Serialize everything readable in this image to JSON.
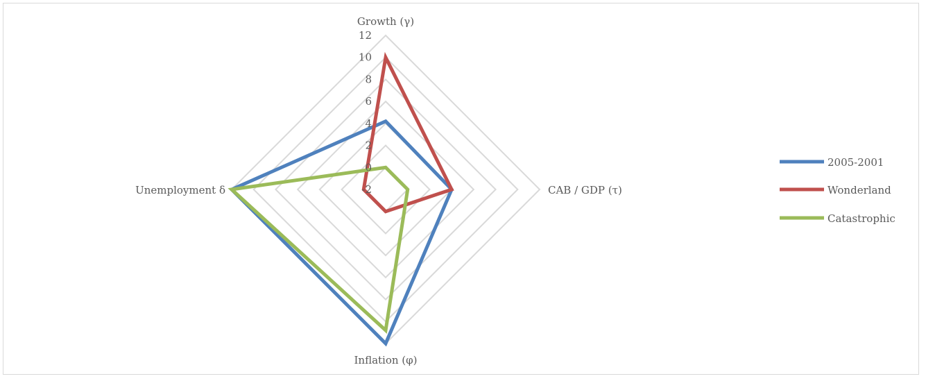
{
  "chart_data": {
    "type": "radar",
    "axes": [
      "Growth (γ)",
      "CAB / GDP (τ)",
      "Inflation (φ)",
      "Unemployment δ"
    ],
    "range": [
      -2,
      12
    ],
    "ticks": [
      "-2",
      "0",
      "2",
      "4",
      "6",
      "8",
      "10",
      "12"
    ],
    "tick_values": [
      -2,
      0,
      2,
      4,
      6,
      8,
      10,
      12
    ],
    "grid": true,
    "legend_position": "right",
    "series": [
      {
        "name": "2005-2001",
        "color": "#4f81bd",
        "values": [
          4.2,
          4.0,
          12.0,
          12.0
        ]
      },
      {
        "name": "Wonderland",
        "color": "#c0504d",
        "values": [
          10.0,
          4.0,
          0.0,
          0.0
        ]
      },
      {
        "name": "Catastrophic",
        "color": "#9bbb59",
        "values": [
          0.0,
          0.0,
          10.8,
          12.0
        ]
      }
    ]
  }
}
